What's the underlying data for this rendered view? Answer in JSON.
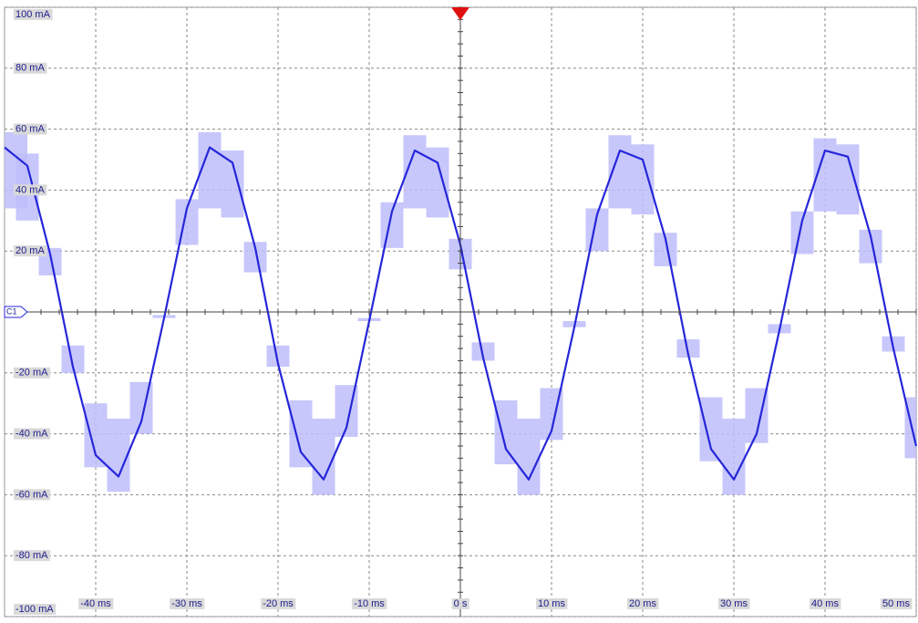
{
  "chart_data": {
    "type": "line",
    "channel_label": "C1",
    "x": [
      -50,
      -47.5,
      -45,
      -42.5,
      -40,
      -37.5,
      -35,
      -32.5,
      -30,
      -27.5,
      -25,
      -22.5,
      -20,
      -17.5,
      -15,
      -12.5,
      -10,
      -7.5,
      -5,
      -2.5,
      0,
      2.5,
      5,
      7.5,
      10,
      12.5,
      15,
      17.5,
      20,
      22.5,
      25,
      27.5,
      30,
      32.5,
      35,
      37.5,
      40,
      42.5,
      45,
      47.5,
      50
    ],
    "series": [
      {
        "color": "#2626d9",
        "values": [
          54,
          48,
          19,
          -18,
          -47,
          -54,
          -36,
          -2,
          34,
          54,
          49,
          21,
          -17,
          -46,
          -55,
          -38,
          -3,
          33,
          53,
          49,
          22,
          -15,
          -45,
          -55,
          -39,
          -5,
          32,
          53,
          50,
          24,
          -14,
          -45,
          -55,
          -40,
          -6,
          30,
          53,
          51,
          25,
          -12,
          -44
        ]
      }
    ],
    "band": {
      "color": "#bdbdfb",
      "high": [
        59,
        52,
        21,
        -11,
        -30,
        -35,
        -23,
        -1,
        37,
        59,
        53,
        23,
        -11,
        -29,
        -35,
        -24,
        -2,
        36,
        58,
        54,
        24,
        -10,
        -29,
        -35,
        -25,
        -3,
        34,
        58,
        55,
        26,
        -9,
        -28,
        -35,
        -25,
        -4,
        33,
        57,
        55,
        27,
        -8,
        -28
      ],
      "low": [
        34,
        30,
        12,
        -20,
        -51,
        -59,
        -40,
        -2,
        22,
        34,
        31,
        13,
        -18,
        -51,
        -60,
        -41,
        -3,
        21,
        34,
        31,
        14,
        -16,
        -50,
        -60,
        -42,
        -5,
        20,
        34,
        32,
        15,
        -15,
        -49,
        -60,
        -43,
        -7,
        19,
        33,
        32,
        16,
        -13,
        -48
      ]
    },
    "xlim": [
      -50,
      50
    ],
    "xticks": [
      {
        "value": -40,
        "label": "-40 ms"
      },
      {
        "value": -30,
        "label": "-30 ms"
      },
      {
        "value": -20,
        "label": "-20 ms"
      },
      {
        "value": -10,
        "label": "-10 ms"
      },
      {
        "value": 0,
        "label": "0 s"
      },
      {
        "value": 10,
        "label": "10 ms"
      },
      {
        "value": 20,
        "label": "20 ms"
      },
      {
        "value": 30,
        "label": "30 ms"
      },
      {
        "value": 40,
        "label": "40 ms"
      },
      {
        "value": 50,
        "label": "50 ms"
      }
    ],
    "ylim": [
      -100,
      100
    ],
    "yticks": [
      {
        "value": 100,
        "label": "100 mA"
      },
      {
        "value": 80,
        "label": "80 mA"
      },
      {
        "value": 60,
        "label": "60 mA"
      },
      {
        "value": 40,
        "label": "40 mA"
      },
      {
        "value": 20,
        "label": "20 mA"
      },
      {
        "value": -20,
        "label": "-20 mA"
      },
      {
        "value": -40,
        "label": "-40 mA"
      },
      {
        "value": -60,
        "label": "-60 mA"
      },
      {
        "value": -80,
        "label": "-80 mA"
      },
      {
        "value": -100,
        "label": "-100 mA"
      }
    ],
    "grid": true
  }
}
